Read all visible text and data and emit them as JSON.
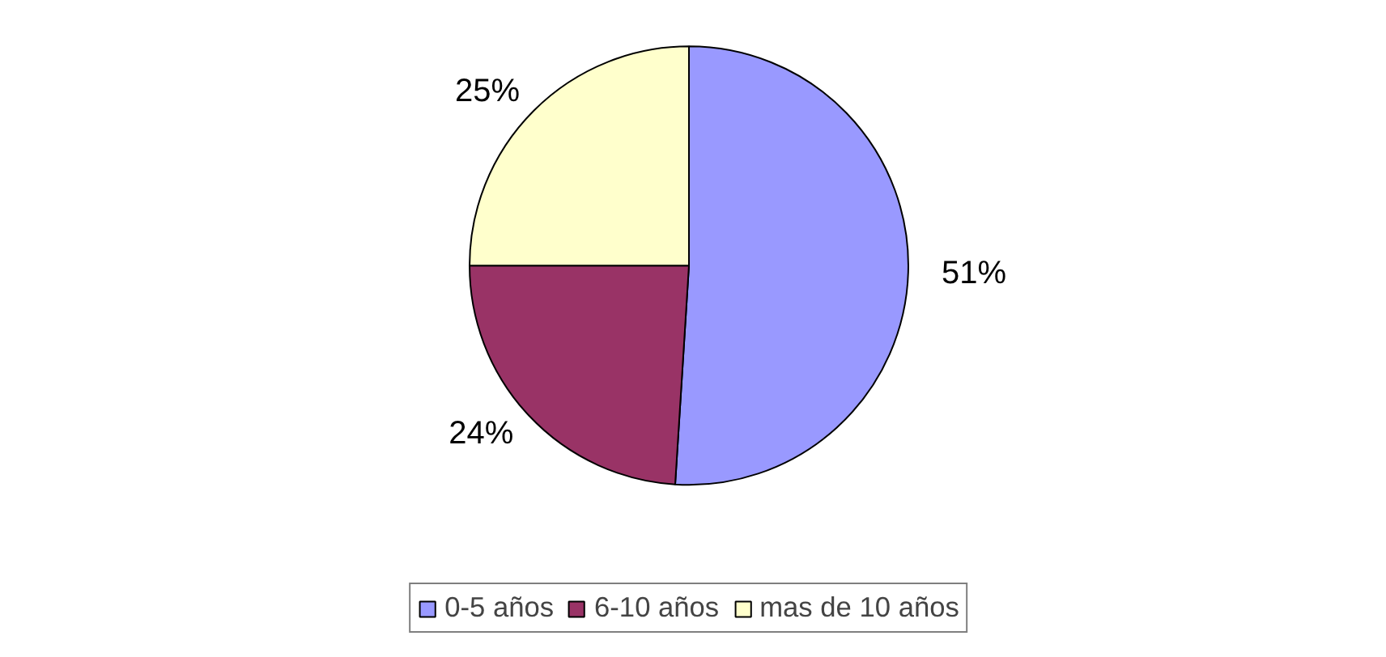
{
  "chart_data": {
    "type": "pie",
    "categories": [
      "0-5 años",
      "6-10 años",
      "mas de 10 años"
    ],
    "values": [
      51,
      24,
      25
    ],
    "colors": [
      "#9999ff",
      "#993366",
      "#ffffcc"
    ],
    "value_labels": [
      "51%",
      "24%",
      "25%"
    ],
    "legend": "bottom"
  }
}
